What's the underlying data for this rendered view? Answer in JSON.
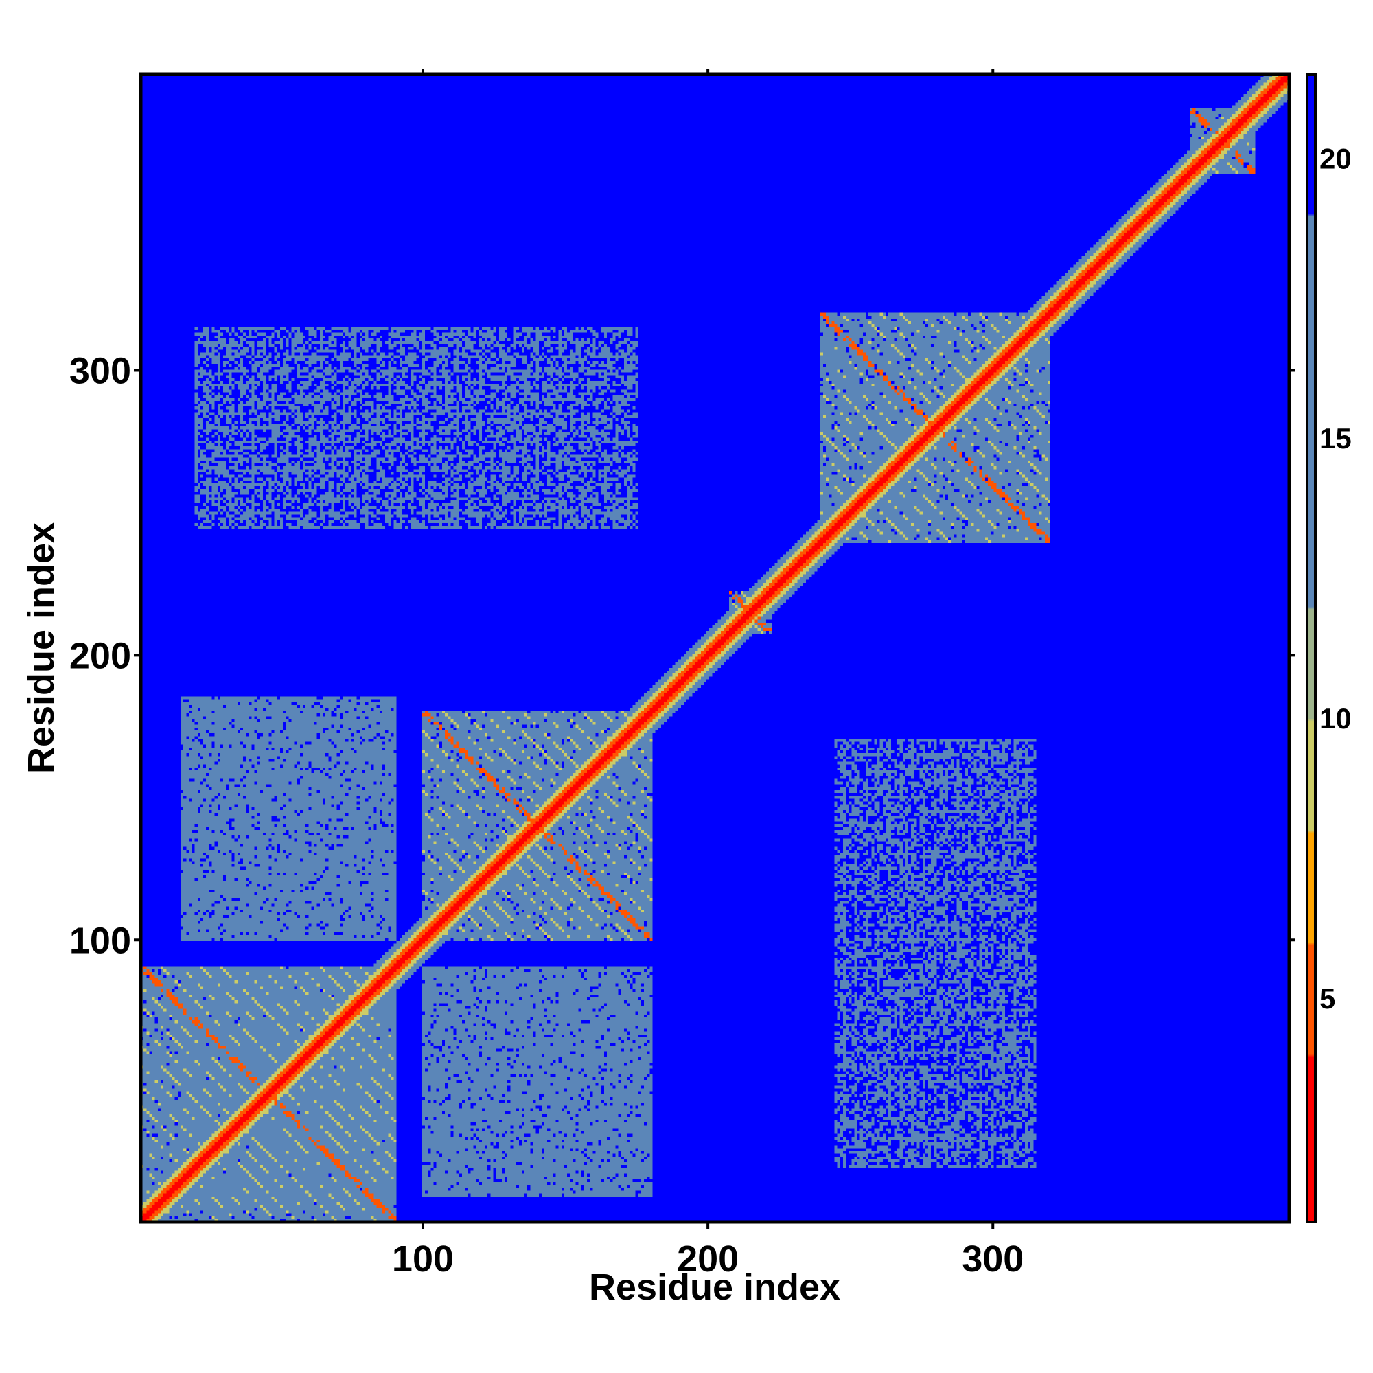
{
  "chart_data": {
    "type": "heatmap",
    "title": "",
    "xlabel": "Residue index",
    "ylabel": "Residue index",
    "xlim": [
      1,
      404
    ],
    "ylim": [
      1,
      404
    ],
    "x_ticks": [
      100,
      200,
      300
    ],
    "x_tick_labels": [
      "100",
      "200",
      "300"
    ],
    "y_ticks": [
      100,
      200,
      300
    ],
    "y_tick_labels": [
      "100",
      "200",
      "300"
    ],
    "colorbar": {
      "range": [
        1,
        21.5
      ],
      "ticks": [
        5,
        10,
        15,
        20
      ],
      "tick_labels": [
        "5",
        "10",
        "15",
        "20"
      ],
      "colors": [
        {
          "max": 4,
          "color": "#ff0000"
        },
        {
          "max": 6,
          "color": "#ff5500"
        },
        {
          "max": 8,
          "color": "#ffa500"
        },
        {
          "max": 10,
          "color": "#cccc66"
        },
        {
          "max": 12,
          "color": "#9eb48c"
        },
        {
          "max": 19,
          "color": "#5b86b8"
        },
        {
          "max": 21.5,
          "color": "#0000ff"
        }
      ]
    },
    "background_value": 21.5,
    "domains": [
      {
        "name": "block-1",
        "range": [
          1,
          90
        ]
      },
      {
        "name": "block-2",
        "range": [
          100,
          180
        ]
      },
      {
        "name": "block-3",
        "range": [
          240,
          320
        ]
      },
      {
        "name": "block-4",
        "range": [
          208,
          222
        ]
      },
      {
        "name": "block-5",
        "range": [
          370,
          392
        ]
      }
    ],
    "interdomain_contacts": [
      {
        "x_range": [
          15,
          90
        ],
        "y_range": [
          5,
          90
        ],
        "value": 17
      },
      {
        "x_range": [
          100,
          180
        ],
        "y_range": [
          10,
          90
        ],
        "value": 17
      },
      {
        "x_range": [
          15,
          90
        ],
        "y_range": [
          100,
          185
        ],
        "value": 17
      },
      {
        "x_range": [
          20,
          175
        ],
        "y_range": [
          245,
          315
        ],
        "value": 18,
        "density": 0.45
      },
      {
        "x_range": [
          245,
          315
        ],
        "y_range": [
          20,
          170
        ],
        "value": 18,
        "density": 0.45
      }
    ]
  }
}
